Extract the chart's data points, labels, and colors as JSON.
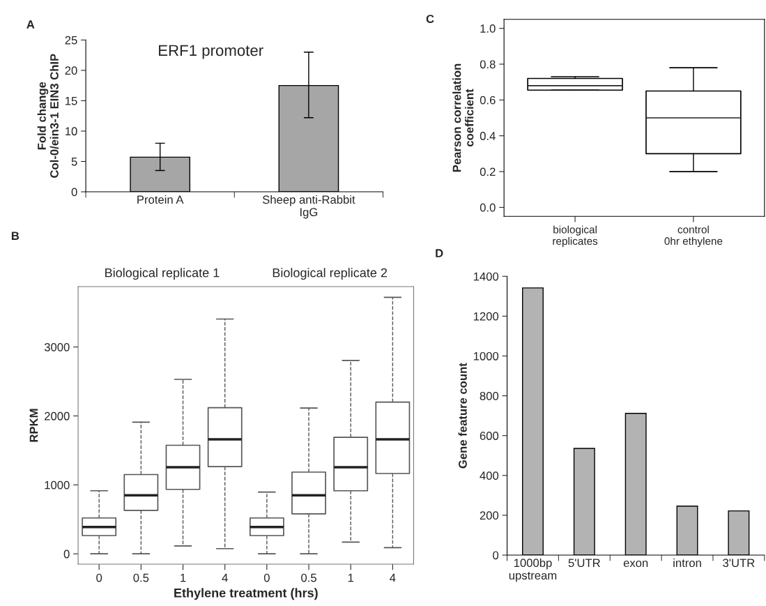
{
  "chart_data": [
    {
      "type": "bar",
      "title": "ERF1 promoter",
      "ylabel": "Fold change\nCol-0/ein3-1 EIN3 ChIP",
      "annotations": [
        "A"
      ],
      "categories": [
        "Protein A",
        "Sheep anti-Rabbit\nIgG"
      ],
      "values": [
        5.7,
        17.5
      ],
      "errors": [
        [
          3.5,
          8.0
        ],
        [
          12.2,
          23.0
        ]
      ],
      "color": "#a6a6a6",
      "ylim": [
        0,
        25
      ],
      "yticks": [
        0,
        5,
        10,
        15,
        20,
        25
      ],
      "grid": false
    },
    {
      "type": "box",
      "ylabel": "Pearson correlation\ncoefficient",
      "annotations": [
        "C"
      ],
      "categories": [
        "biological\nreplicates",
        "control\n0hr ethylene"
      ],
      "boxes": [
        {
          "low": 0.655,
          "q1": 0.655,
          "median": 0.68,
          "q3": 0.72,
          "high": 0.73
        },
        {
          "low": 0.2,
          "q1": 0.3,
          "median": 0.5,
          "q3": 0.65,
          "high": 0.78
        }
      ],
      "line_style": "solid",
      "ylim": [
        -0.05,
        1.05
      ],
      "yticks": [
        {
          "value": 0,
          "label": "0.0"
        },
        0.2,
        0.4,
        0.6,
        0.8,
        {
          "value": 1,
          "label": "1.0"
        }
      ],
      "grid": false
    },
    {
      "type": "box",
      "xlabel": "Ethylene treatment (hrs)",
      "ylabel": "RPKM",
      "annotations": [
        "B",
        "Biological replicate 1",
        "Biological replicate 2"
      ],
      "categories": [
        "0",
        "0.5",
        "1",
        "4",
        "0",
        "0.5",
        "1",
        "4"
      ],
      "boxes": [
        {
          "low": 0,
          "q1": 265,
          "median": 390,
          "q3": 520,
          "high": 915
        },
        {
          "low": 0,
          "q1": 630,
          "median": 850,
          "q3": 1150,
          "high": 1910
        },
        {
          "low": 115,
          "q1": 935,
          "median": 1255,
          "q3": 1575,
          "high": 2530
        },
        {
          "low": 75,
          "q1": 1265,
          "median": 1660,
          "q3": 2120,
          "high": 3405
        },
        {
          "low": 0,
          "q1": 265,
          "median": 390,
          "q3": 520,
          "high": 895
        },
        {
          "low": 0,
          "q1": 580,
          "median": 850,
          "q3": 1185,
          "high": 2115
        },
        {
          "low": 170,
          "q1": 915,
          "median": 1255,
          "q3": 1690,
          "high": 2805
        },
        {
          "low": 90,
          "q1": 1165,
          "median": 1660,
          "q3": 2200,
          "high": 3720
        }
      ],
      "line_style": "dashed",
      "ylim": [
        -150,
        3875
      ],
      "yticks": [
        0,
        1000,
        2000,
        3000
      ],
      "grid": false
    },
    {
      "type": "bar",
      "ylabel": "Gene feature count",
      "annotations": [
        "D"
      ],
      "categories": [
        "1000bp\nupstream",
        "5'UTR",
        "exon",
        "intron",
        "3'UTR"
      ],
      "values": [
        1342,
        536,
        712,
        246,
        222
      ],
      "color": "#b3b3b3",
      "ylim": [
        0,
        1400
      ],
      "yticks": [
        0,
        200,
        400,
        600,
        800,
        1000,
        1200,
        1400
      ],
      "grid": false
    }
  ]
}
